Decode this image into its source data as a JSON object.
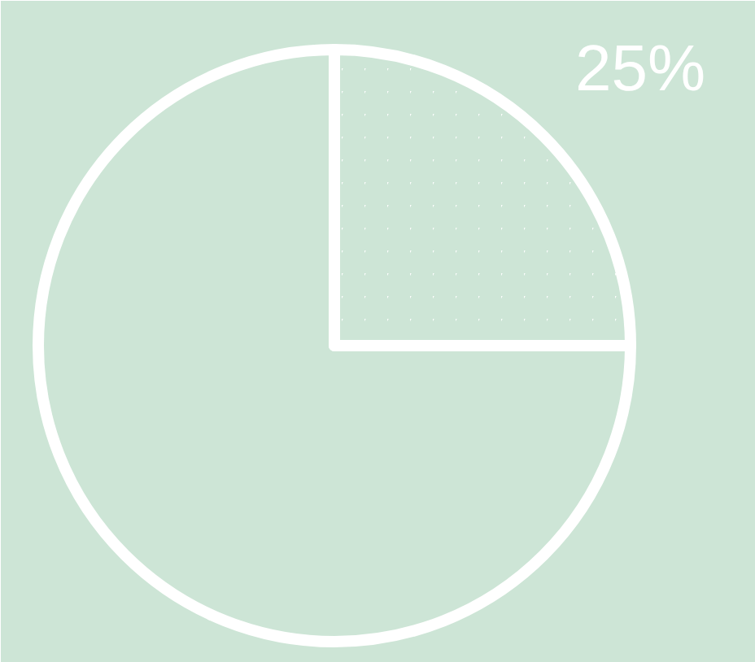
{
  "chart_data": {
    "type": "pie",
    "categories": [
      null,
      null
    ],
    "values": [
      75,
      25
    ],
    "colors": [
      "#cde5d6",
      "#ffffff"
    ],
    "value_labels": [
      null,
      "25%"
    ]
  }
}
